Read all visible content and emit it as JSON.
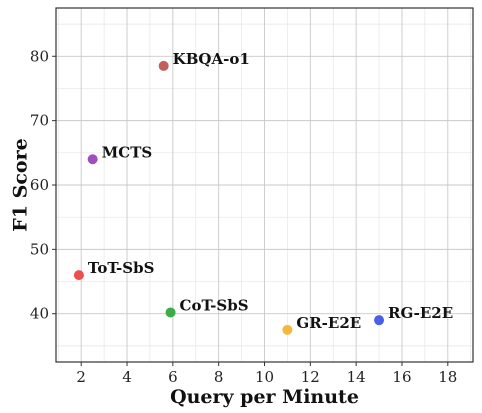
{
  "chart_data": {
    "type": "scatter",
    "xlabel": "Query per Minute",
    "ylabel": "F1 Score",
    "xlim": [
      0.9,
      19.1
    ],
    "ylim": [
      32.5,
      87.5
    ],
    "xticks": [
      2,
      4,
      6,
      8,
      10,
      12,
      14,
      16,
      18
    ],
    "yticks": [
      40,
      50,
      60,
      70,
      80
    ],
    "grid": true,
    "points": [
      {
        "label": "KBQA-o1",
        "x": 5.6,
        "y": 78.5,
        "color": "#c0605a"
      },
      {
        "label": "MCTS",
        "x": 2.5,
        "y": 64.0,
        "color": "#a04fbf"
      },
      {
        "label": "ToT-SbS",
        "x": 1.9,
        "y": 46.0,
        "color": "#f04d4d"
      },
      {
        "label": "CoT-SbS",
        "x": 5.9,
        "y": 40.2,
        "color": "#3cab4a"
      },
      {
        "label": "GR-E2E",
        "x": 11.0,
        "y": 37.5,
        "color": "#f5b83d"
      },
      {
        "label": "RG-E2E",
        "x": 15.0,
        "y": 39.0,
        "color": "#4a5fe8"
      }
    ]
  }
}
